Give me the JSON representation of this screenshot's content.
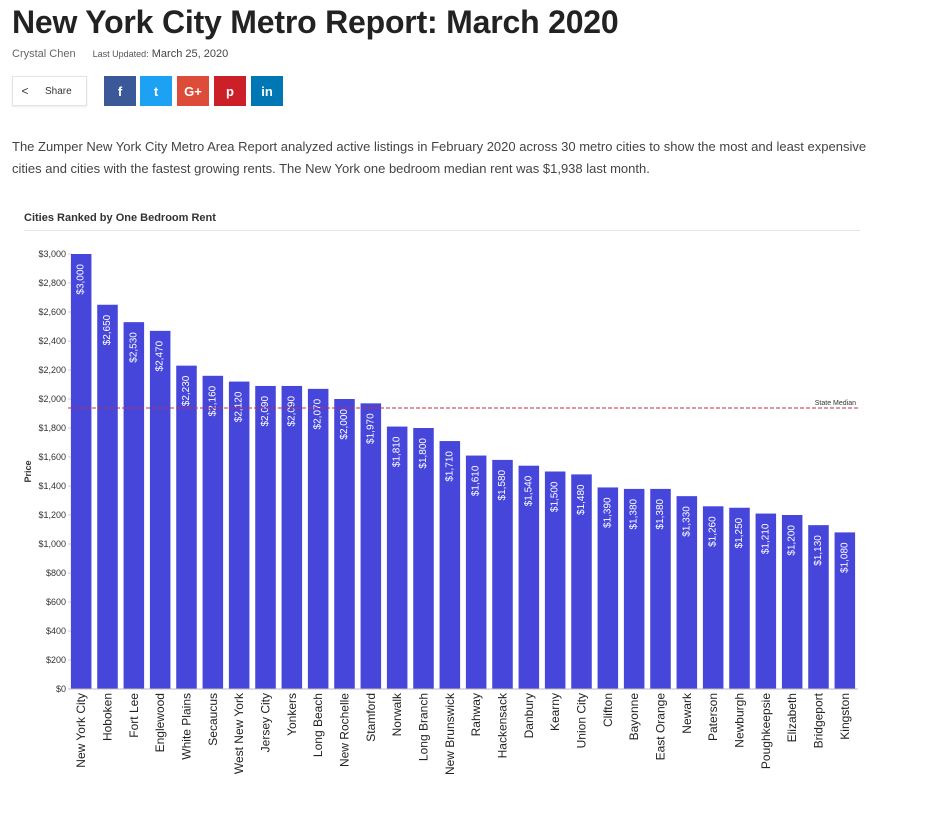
{
  "header": {
    "title": "New York City Metro Report: March 2020",
    "author": "Crystal Chen",
    "updated_label": "Last Updated:",
    "updated_date": "March 25, 2020"
  },
  "share": {
    "label": "Share",
    "buttons": [
      {
        "name": "facebook",
        "glyph": "f",
        "color": "#3b5998"
      },
      {
        "name": "twitter",
        "glyph": "t",
        "color": "#1da1f2"
      },
      {
        "name": "google-plus",
        "glyph": "G+",
        "color": "#dd4b39"
      },
      {
        "name": "pinterest",
        "glyph": "p",
        "color": "#cb2027"
      },
      {
        "name": "linkedin",
        "glyph": "in",
        "color": "#0077b5"
      }
    ]
  },
  "intro": "The Zumper New York City Metro Area Report analyzed active listings in February 2020 across 30 metro cities to show the most and least expensive cities and cities with the fastest growing rents. The New York one bedroom median rent was $1,938 last month.",
  "chart_data": {
    "type": "bar",
    "title": "Cities Ranked by One Bedroom Rent",
    "xlabel": "",
    "ylabel": "Price",
    "ylim": [
      0,
      3000
    ],
    "yticks": [
      0,
      200,
      400,
      600,
      800,
      1000,
      1200,
      1400,
      1600,
      1800,
      2000,
      2200,
      2400,
      2600,
      2800,
      3000
    ],
    "bar_color": "#4646db",
    "reference_line": {
      "label": "State Median",
      "value": 1938,
      "color": "#c0304a"
    },
    "categories": [
      "New York City",
      "Hoboken",
      "Fort Lee",
      "Englewood",
      "White Plains",
      "Secaucus",
      "West New York",
      "Jersey City",
      "Yonkers",
      "Long Beach",
      "New Rochelle",
      "Stamford",
      "Norwalk",
      "Long Branch",
      "New Brunswick",
      "Rahway",
      "Hackensack",
      "Danbury",
      "Kearny",
      "Union City",
      "Clifton",
      "Bayonne",
      "East Orange",
      "Newark",
      "Paterson",
      "Newburgh",
      "Poughkeepsie",
      "Elizabeth",
      "Bridgeport",
      "Kingston"
    ],
    "values": [
      3000,
      2650,
      2530,
      2470,
      2230,
      2160,
      2120,
      2090,
      2090,
      2070,
      2000,
      1970,
      1810,
      1800,
      1710,
      1610,
      1580,
      1540,
      1500,
      1480,
      1390,
      1380,
      1380,
      1330,
      1260,
      1250,
      1210,
      1200,
      1130,
      1080
    ]
  }
}
